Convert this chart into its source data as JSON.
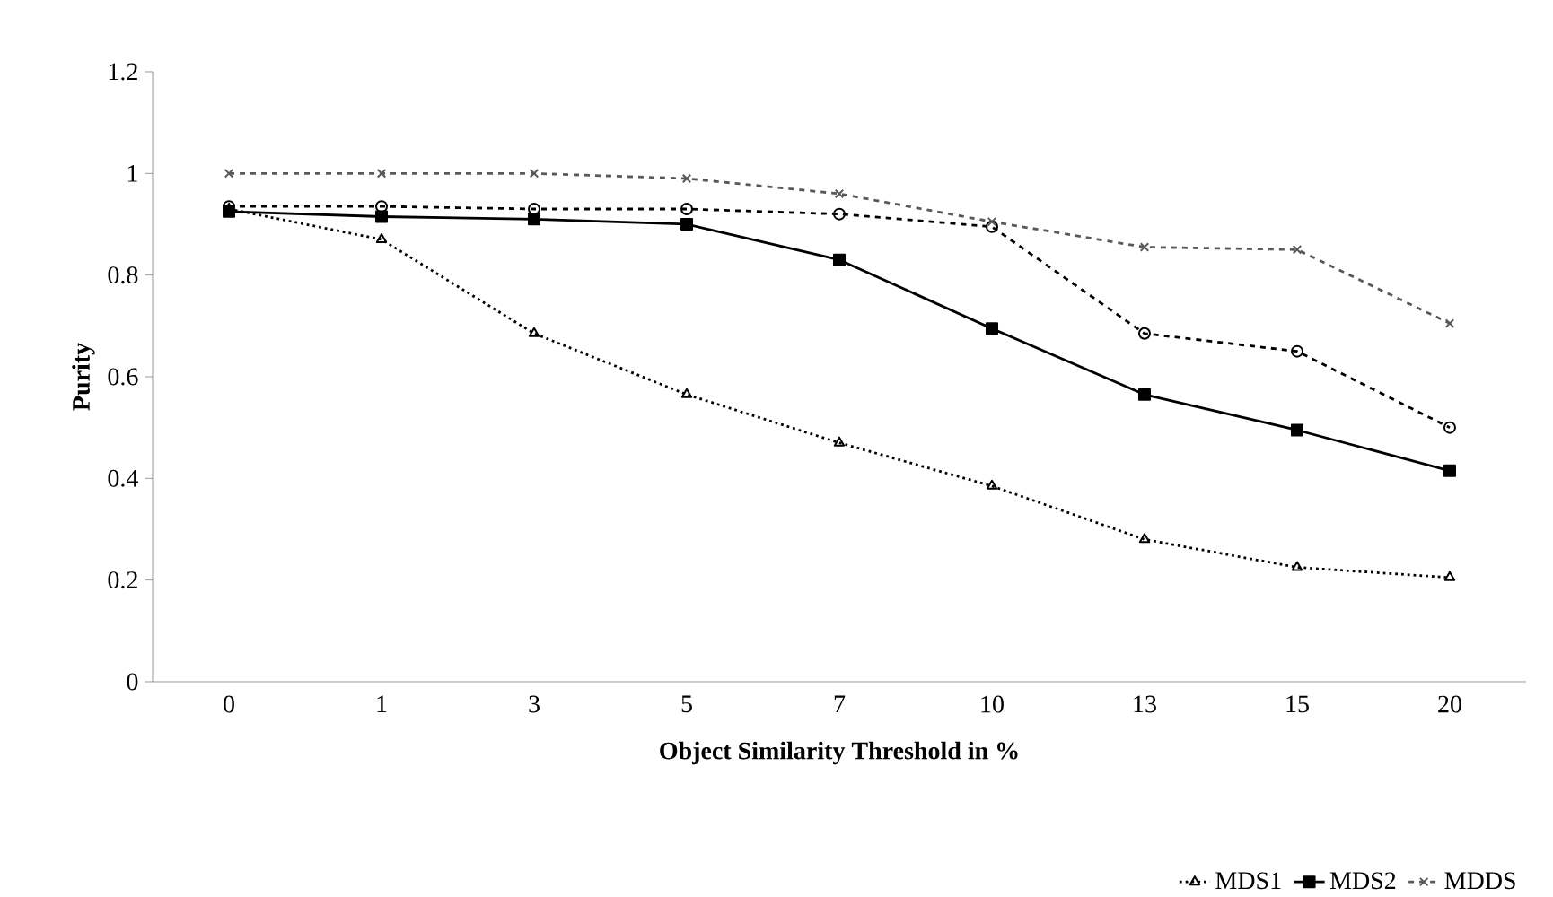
{
  "chart_data": {
    "type": "line",
    "xlabel": "Object Similarity Threshold in %",
    "ylabel": "Purity",
    "categories": [
      "0",
      "1",
      "3",
      "5",
      "7",
      "10",
      "13",
      "15",
      "20"
    ],
    "ylim": [
      0,
      1.2
    ],
    "yticks": [
      0,
      0.2,
      0.4,
      0.6,
      0.8,
      1,
      1.2
    ],
    "legend": "bottom right",
    "grid": false,
    "series": [
      {
        "name": "MDS1",
        "color": "#000000",
        "marker": "triangle",
        "line_style": "dotted",
        "values": [
          0.93,
          0.87,
          0.685,
          0.565,
          0.47,
          0.385,
          0.28,
          0.225,
          0.205
        ]
      },
      {
        "name": "MDS2",
        "color": "#000000",
        "marker": "square",
        "line_style": "solid",
        "values": [
          0.925,
          0.915,
          0.91,
          0.9,
          0.83,
          0.695,
          0.565,
          0.495,
          0.415
        ]
      },
      {
        "color": "#000000",
        "marker": "circle",
        "line_style": "dashed",
        "values": [
          0.935,
          0.935,
          0.93,
          0.93,
          0.92,
          0.895,
          0.685,
          0.65,
          0.5
        ]
      },
      {
        "name": "MDDS",
        "color": "#595959",
        "marker": "cross",
        "line_style": "dashed",
        "values": [
          1.0,
          1.0,
          1.0,
          0.99,
          0.96,
          0.905,
          0.855,
          0.85,
          0.705
        ]
      }
    ]
  }
}
